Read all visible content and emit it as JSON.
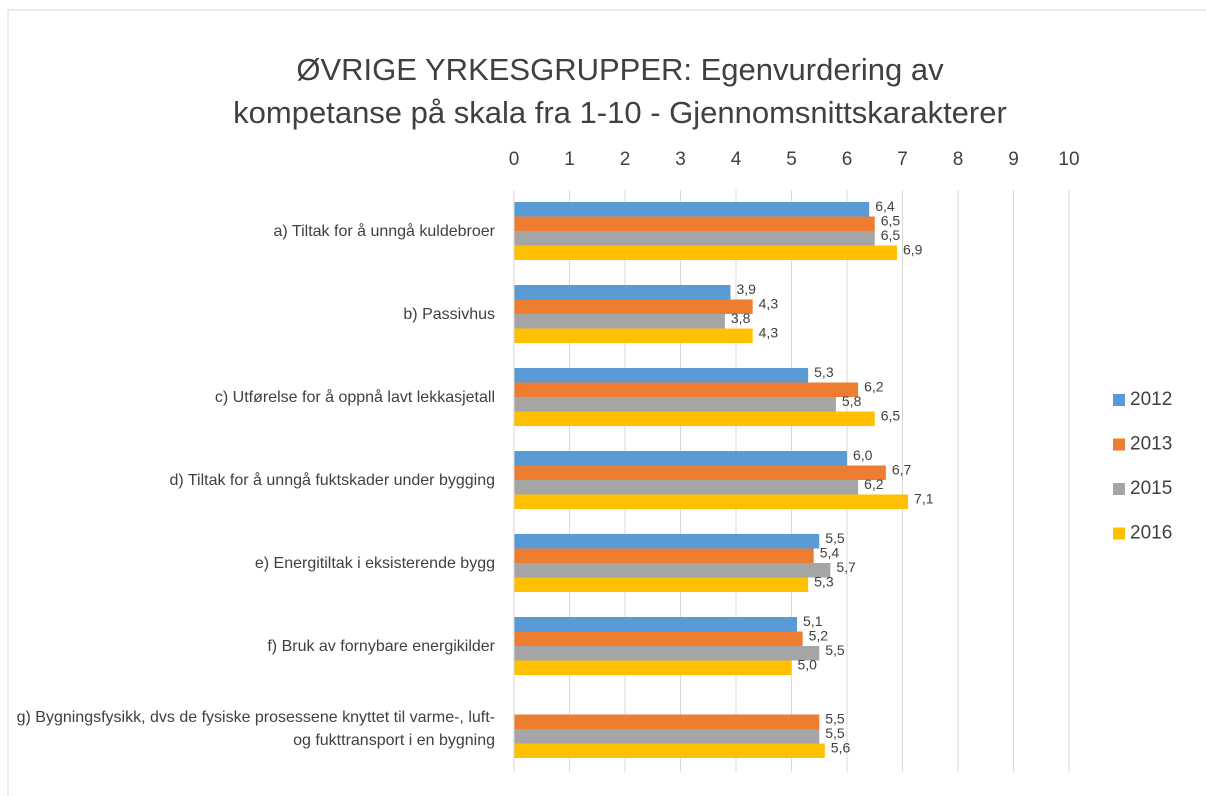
{
  "chart_data": {
    "type": "bar",
    "orientation": "horizontal",
    "title": "ØVRIGE YRKESGRUPPER: Egenvurdering av kompetanse på skala fra 1-10 - Gjennomsnittskarakterer",
    "categories": [
      "a) Tiltak for å unngå kuldebroer",
      "b) Passivhus",
      "c) Utførelse for å oppnå lavt lekkasjetall",
      "d) Tiltak for å unngå fuktskader under bygging",
      "e) Energitiltak i eksisterende bygg",
      "f) Bruk av fornybare energikilder",
      "g) Bygningsfysikk, dvs de fysiske prosessene knyttet til varme-, luft- og fukttransport i en bygning"
    ],
    "series": [
      {
        "name": "2012",
        "color": "#5b9bd5",
        "values": [
          6.4,
          3.9,
          5.3,
          6.0,
          5.5,
          5.1,
          null
        ],
        "value_labels": [
          "6,4",
          "3,9",
          "5,3",
          "6,0",
          "5,5",
          "5,1",
          null
        ]
      },
      {
        "name": "2013",
        "color": "#ed7d31",
        "values": [
          6.5,
          4.3,
          6.2,
          6.7,
          5.4,
          5.2,
          5.5
        ],
        "value_labels": [
          "6,5",
          "4,3",
          "6,2",
          "6,7",
          "5,4",
          "5,2",
          "5,5"
        ]
      },
      {
        "name": "2015",
        "color": "#a5a5a5",
        "values": [
          6.5,
          3.8,
          5.8,
          6.2,
          5.7,
          5.5,
          5.5
        ],
        "value_labels": [
          "6,5",
          "3,8",
          "5,8",
          "6,2",
          "5,7",
          "5,5",
          "5,5"
        ]
      },
      {
        "name": "2016",
        "color": "#ffc000",
        "values": [
          6.9,
          4.3,
          6.5,
          7.1,
          5.3,
          5.0,
          5.6
        ],
        "value_labels": [
          "6,9",
          "4,3",
          "6,5",
          "7,1",
          "5,3",
          "5,0",
          "5,6"
        ]
      }
    ],
    "xlim": [
      0,
      10
    ],
    "xticks": [
      0,
      1,
      2,
      3,
      4,
      5,
      6,
      7,
      8,
      9,
      10
    ],
    "grid": true,
    "legend": "right"
  }
}
